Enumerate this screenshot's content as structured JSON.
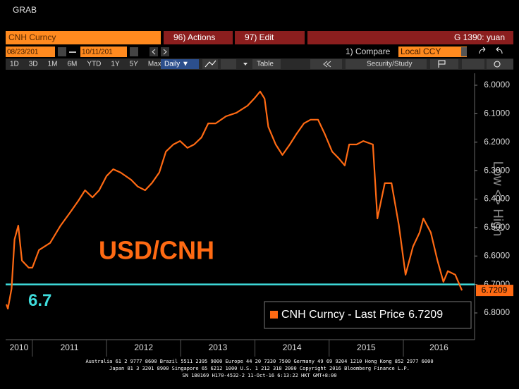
{
  "header": {
    "title": "GRAB"
  },
  "toolbar": {
    "security": "CNH Curncy",
    "actions": "96) Actions",
    "edit": "97) Edit",
    "function": "G 1390: yuan",
    "start_date": "08/23/201",
    "end_date": "10/11/201",
    "compare": "1) Compare",
    "currency": "Local CCY",
    "periods": [
      "1D",
      "3D",
      "1M",
      "6M",
      "YTD",
      "1Y",
      "5Y",
      "Max"
    ],
    "frequency": "Daily ▼",
    "table": "Table",
    "security_study": "Security/Study"
  },
  "chart_data": {
    "type": "line",
    "x": [
      2010.65,
      2010.67,
      2010.72,
      2010.76,
      2010.81,
      2010.86,
      2010.95,
      2011.0,
      2011.09,
      2011.24,
      2011.38,
      2011.52,
      2011.62,
      2011.71,
      2011.81,
      2011.9,
      2012.0,
      2012.09,
      2012.19,
      2012.33,
      2012.42,
      2012.52,
      2012.61,
      2012.71,
      2012.8,
      2012.9,
      2012.99,
      2013.09,
      2013.18,
      2013.28,
      2013.37,
      2013.47,
      2013.61,
      2013.75,
      2013.9,
      2013.99,
      2014.07,
      2014.13,
      2014.18,
      2014.28,
      2014.37,
      2014.47,
      2014.56,
      2014.66,
      2014.75,
      2014.85,
      2014.94,
      2015.04,
      2015.13,
      2015.21,
      2015.27,
      2015.37,
      2015.46,
      2015.59,
      2015.65,
      2015.75,
      2015.84,
      2015.94,
      2016.03,
      2016.13,
      2016.22,
      2016.27,
      2016.37,
      2016.46,
      2016.54,
      2016.6,
      2016.7,
      2016.79
    ],
    "series": [
      {
        "name": "CNH Curncy - Last Price",
        "color": "#ff6a13",
        "values": [
          6.77,
          6.785,
          6.715,
          6.542,
          6.493,
          6.616,
          6.641,
          6.641,
          6.579,
          6.554,
          6.493,
          6.443,
          6.406,
          6.369,
          6.394,
          6.369,
          6.319,
          6.295,
          6.307,
          6.332,
          6.356,
          6.369,
          6.344,
          6.307,
          6.233,
          6.208,
          6.196,
          6.22,
          6.208,
          6.183,
          6.134,
          6.134,
          6.109,
          6.097,
          6.072,
          6.047,
          6.022,
          6.047,
          6.146,
          6.208,
          6.245,
          6.208,
          6.171,
          6.134,
          6.121,
          6.121,
          6.171,
          6.233,
          6.257,
          6.282,
          6.208,
          6.208,
          6.196,
          6.208,
          6.468,
          6.344,
          6.344,
          6.493,
          6.666,
          6.567,
          6.517,
          6.468,
          6.517,
          6.616,
          6.691,
          6.653,
          6.666,
          6.7209
        ]
      }
    ],
    "xlim": [
      2010.64,
      2016.96
    ],
    "xticks": [
      {
        "value": 2010,
        "label": "2010"
      },
      {
        "value": 2011,
        "label": "2011"
      },
      {
        "value": 2012,
        "label": "2012"
      },
      {
        "value": 2013,
        "label": "2013"
      },
      {
        "value": 2014,
        "label": "2014"
      },
      {
        "value": 2015,
        "label": "2015"
      },
      {
        "value": 2016,
        "label": "2016"
      }
    ],
    "ylim": [
      5.958,
      6.894
    ],
    "y_inverted": true,
    "y_axis_side": "right",
    "y_axis_label": "Low <> High",
    "yticks": [
      {
        "value": 6.0,
        "label": "6.0000"
      },
      {
        "value": 6.1,
        "label": "6.1000"
      },
      {
        "value": 6.2,
        "label": "6.2000"
      },
      {
        "value": 6.3,
        "label": "6.3000"
      },
      {
        "value": 6.4,
        "label": "6.4000"
      },
      {
        "value": 6.5,
        "label": "6.5000"
      },
      {
        "value": 6.6,
        "label": "6.6000"
      },
      {
        "value": 6.7,
        "label": "6.7000"
      },
      {
        "value": 6.8,
        "label": "6.8000"
      }
    ],
    "reference_line": {
      "value": 6.7,
      "color": "#3fdcdc"
    },
    "annotation": {
      "text": "USD/CNH",
      "color": "#ff6a13"
    },
    "legend": "lower right",
    "grid": false
  },
  "footer": {
    "lines": [
      "Australia 61 2 9777 8600 Brazil 5511 2395 9000 Europe 44 20 7330 7500 Germany 49 69 9204 1210 Hong Kong 852 2977 6000",
      "Japan 81 3 3201 8900      Singapore 65 6212 1000      U.S. 1 212 318 2000             Copyright 2016 Bloomberg Finance L.P.",
      "SN 180169 H170-4532-2 11-Oct-16  6:13:22 HKT  GMT+8:00"
    ]
  }
}
